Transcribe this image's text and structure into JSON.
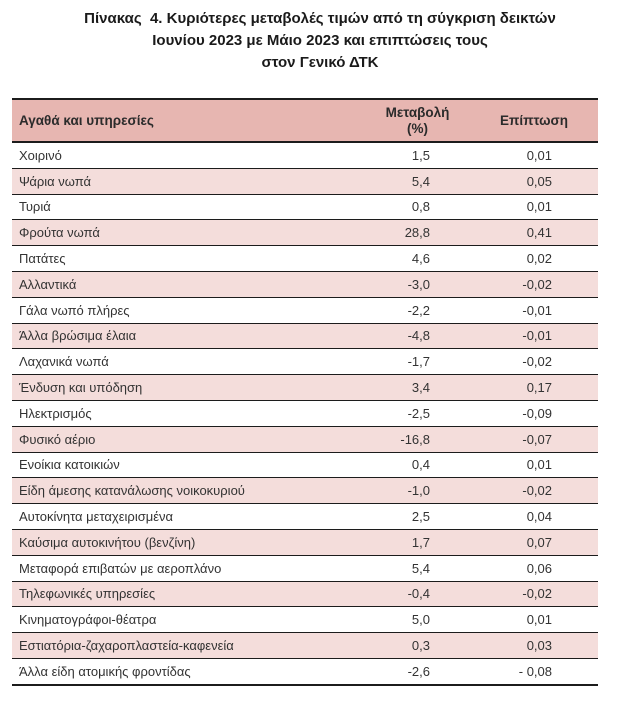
{
  "title": {
    "lines": [
      "Πίνακας  4. Κυριότερες μεταβολές τιμών από τη σύγκριση δεικτών",
      "Ιουνίου 2023 με Μάιο 2023 και επιπτώσεις τους",
      "στον Γενικό ΔΤΚ"
    ]
  },
  "table": {
    "columns": [
      {
        "header": "Αγαθά και υπηρεσίες"
      },
      {
        "header": "Μεταβολή",
        "header_line2": "(%)"
      },
      {
        "header": "Επίπτωση"
      }
    ],
    "rows": [
      {
        "label": "Χοιρινό",
        "change": "1,5",
        "impact": "0,01"
      },
      {
        "label": "Ψάρια νωπά",
        "change": "5,4",
        "impact": "0,05"
      },
      {
        "label": "Τυριά",
        "change": "0,8",
        "impact": "0,01"
      },
      {
        "label": "Φρούτα νωπά",
        "change": "28,8",
        "impact": "0,41"
      },
      {
        "label": "Πατάτες",
        "change": "4,6",
        "impact": "0,02"
      },
      {
        "label": "Αλλαντικά",
        "change": "-3,0",
        "impact": "-0,02"
      },
      {
        "label": "Γάλα νωπό πλήρες",
        "change": "-2,2",
        "impact": "-0,01"
      },
      {
        "label": "Άλλα βρώσιμα έλαια",
        "change": "-4,8",
        "impact": "-0,01"
      },
      {
        "label": "Λαχανικά νωπά",
        "change": "-1,7",
        "impact": "-0,02"
      },
      {
        "label": "Ένδυση και υπόδηση",
        "change": "3,4",
        "impact": "0,17"
      },
      {
        "label": "Ηλεκτρισμός",
        "change": "-2,5",
        "impact": "-0,09"
      },
      {
        "label": "Φυσικό αέριο",
        "change": "-16,8",
        "impact": "-0,07"
      },
      {
        "label": "Ενοίκια κατοικιών",
        "change": "0,4",
        "impact": "0,01"
      },
      {
        "label": "Είδη άμεσης κατανάλωσης νοικοκυριού",
        "change": "-1,0",
        "impact": "-0,02"
      },
      {
        "label": "Αυτοκίνητα μεταχειρισμένα",
        "change": "2,5",
        "impact": "0,04"
      },
      {
        "label": "Καύσιμα αυτοκινήτου (βενζίνη)",
        "change": "1,7",
        "impact": "0,07"
      },
      {
        "label": "Μεταφορά επιβατών με αεροπλάνο",
        "change": "5,4",
        "impact": "0,06"
      },
      {
        "label": "Τηλεφωνικές υπηρεσίες",
        "change": "-0,4",
        "impact": "-0,02"
      },
      {
        "label": "Κινηματογράφοι-θέατρα",
        "change": "5,0",
        "impact": "0,01"
      },
      {
        "label": "Εστιατόρια-ζαχαροπλαστεία-καφενεία",
        "change": "0,3",
        "impact": "0,03"
      },
      {
        "label": "Άλλα είδη ατομικής φροντίδας",
        "change": "-2,6",
        "impact": "- 0,08"
      }
    ]
  },
  "colors": {
    "header_bg": "#e7b6b1",
    "stripe_bg": "#f4dddb",
    "border": "#1c1c1c",
    "body_text": "#333333",
    "title_text": "#1a1a1a"
  }
}
